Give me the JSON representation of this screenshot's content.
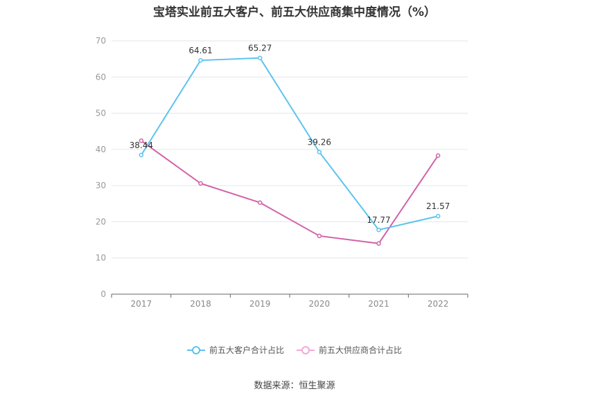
{
  "title": "宝塔实业前五大客户、前五大供应商集中度情况（%）",
  "source": "数据来源：恒生聚源",
  "chart_data": {
    "type": "line",
    "categories": [
      "2017",
      "2018",
      "2019",
      "2020",
      "2021",
      "2022"
    ],
    "ylim": [
      0,
      70
    ],
    "yticks": [
      0,
      10,
      20,
      30,
      40,
      50,
      60,
      70
    ],
    "grid": true,
    "legend_position": "bottom",
    "series": [
      {
        "name": "前五大客户合计占比",
        "color": "#5bc3ee",
        "values": [
          38.44,
          64.61,
          65.27,
          39.26,
          17.77,
          21.57
        ],
        "labels": [
          "38.44",
          "64.61",
          "65.27",
          "39.26",
          "17.77",
          "21.57"
        ]
      },
      {
        "name": "前五大供应商合计占比",
        "color": "#d262a8",
        "values": [
          42.4,
          30.6,
          25.3,
          16.1,
          14.0,
          38.3
        ],
        "labels": []
      }
    ]
  }
}
